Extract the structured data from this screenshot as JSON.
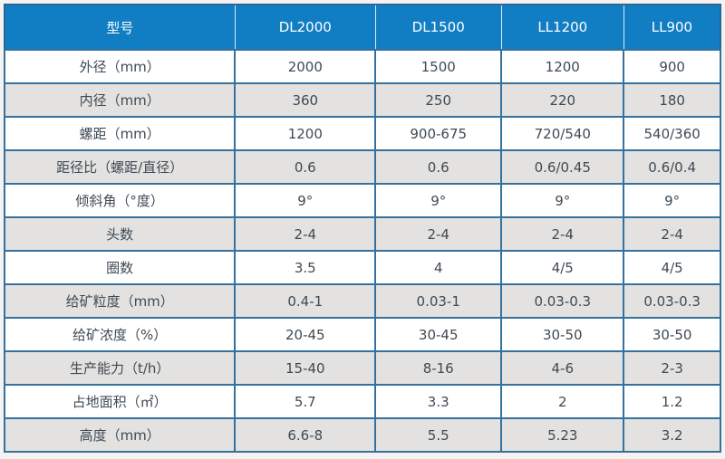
{
  "table": {
    "columns": [
      {
        "label": "型号"
      },
      {
        "label": "DL2000"
      },
      {
        "label": "DL1500"
      },
      {
        "label": "LL1200"
      },
      {
        "label": "LL900"
      }
    ],
    "rows": [
      {
        "label": "外径（mm）",
        "values": [
          "2000",
          "1500",
          "1200",
          "900"
        ]
      },
      {
        "label": "内径（mm）",
        "values": [
          "360",
          "250",
          "220",
          "180"
        ]
      },
      {
        "label": "螺距（mm）",
        "values": [
          "1200",
          "900-675",
          "720/540",
          "540/360"
        ]
      },
      {
        "label": "距径比（螺距/直径）",
        "values": [
          "0.6",
          "0.6",
          "0.6/0.45",
          "0.6/0.4"
        ]
      },
      {
        "label": "倾斜角（°度）",
        "values": [
          "9°",
          "9°",
          "9°",
          "9°"
        ]
      },
      {
        "label": "头数",
        "values": [
          "2-4",
          "2-4",
          "2-4",
          "2-4"
        ]
      },
      {
        "label": "圈数",
        "values": [
          "3.5",
          "4",
          "4/5",
          "4/5"
        ]
      },
      {
        "label": "给矿粒度（mm）",
        "values": [
          "0.4-1",
          "0.03-1",
          "0.03-0.3",
          "0.03-0.3"
        ]
      },
      {
        "label": "给矿浓度（%）",
        "values": [
          "20-45",
          "30-45",
          "30-50",
          "30-50"
        ]
      },
      {
        "label": "生产能力（t/h）",
        "values": [
          "15-40",
          "8-16",
          "4-6",
          "2-3"
        ]
      },
      {
        "label": "占地面积（㎡）",
        "values": [
          "5.7",
          "3.3",
          "2",
          "1.2"
        ]
      },
      {
        "label": "高度（mm）",
        "values": [
          "6.6-8",
          "5.5",
          "5.23",
          "3.2"
        ]
      }
    ]
  },
  "colors": {
    "header_background": "#117ec4",
    "header_text": "#ffffff",
    "cell_border": "#35719f",
    "outer_border": "#2c6492",
    "body_text": "#3f4a55",
    "alternate_row_background": "#e3e2e0",
    "page_background": "#f4f3f1"
  }
}
